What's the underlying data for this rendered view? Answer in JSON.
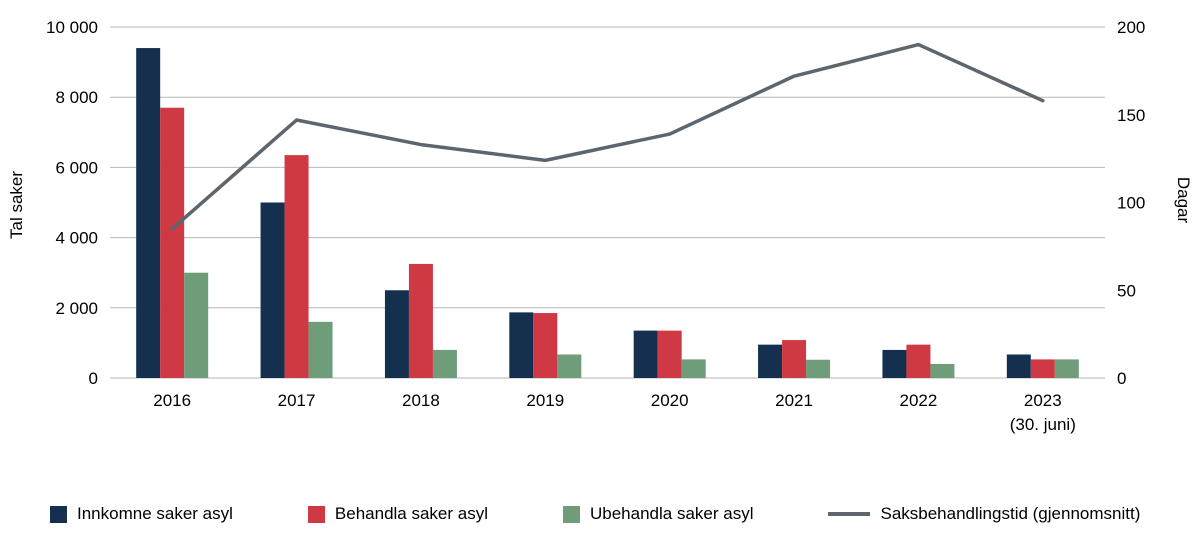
{
  "chart_data": {
    "type": "bar+line",
    "categories": [
      "2016",
      "2017",
      "2018",
      "2019",
      "2020",
      "2021",
      "2022",
      "2023"
    ],
    "category_sublabels": [
      "",
      "",
      "",
      "",
      "",
      "",
      "",
      "(30. juni)"
    ],
    "bar_series": [
      {
        "name": "Innkomne saker asyl",
        "color": "#14304e",
        "values": [
          9400,
          5000,
          2500,
          1870,
          1350,
          950,
          800,
          670
        ]
      },
      {
        "name": "Behandla saker asyl",
        "color": "#ce3944",
        "values": [
          7700,
          6350,
          3250,
          1850,
          1350,
          1080,
          950,
          530
        ]
      },
      {
        "name": "Ubehandla saker asyl",
        "color": "#6f9c79",
        "values": [
          3000,
          1600,
          800,
          670,
          530,
          520,
          400,
          530
        ]
      }
    ],
    "line_series": {
      "name": "Saksbehandlingstid (gjennomsnitt)",
      "color": "#5d666d",
      "values": [
        85,
        147,
        133,
        124,
        139,
        172,
        190,
        158
      ]
    },
    "left_axis": {
      "label": "Tal saker",
      "min": 0,
      "max": 10000,
      "step": 2000,
      "tick_labels": [
        "0",
        "2 000",
        "4 000",
        "6 000",
        "8 000",
        "10 000"
      ]
    },
    "right_axis": {
      "label": "Dagar",
      "min": 0,
      "max": 200,
      "step": 50,
      "tick_labels": [
        "0",
        "50",
        "100",
        "150",
        "200"
      ]
    },
    "grid": true,
    "gridline_color": "#b7b7b7",
    "legend_position": "bottom"
  }
}
